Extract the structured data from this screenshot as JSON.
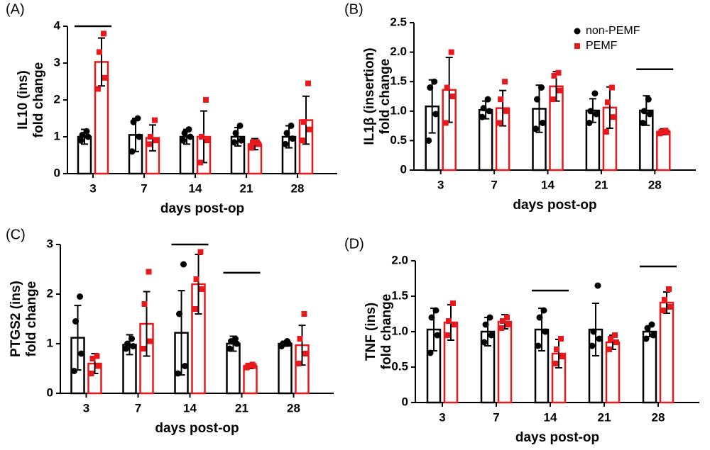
{
  "chart_data": [
    {
      "type": "bar",
      "panel_label": "(A)",
      "ylabel": [
        "IL10 (ins)",
        "fold change"
      ],
      "xlabel": "days post-op",
      "categories": [
        "3",
        "7",
        "14",
        "21",
        "28"
      ],
      "ylim": [
        0,
        4
      ],
      "yticks": [
        0,
        1,
        2,
        3,
        4
      ],
      "significance": [
        {
          "category": "3",
          "y": 4
        }
      ],
      "series": [
        {
          "name": "non-PEMF",
          "color": "#000000",
          "values": [
            1.0,
            1.05,
            1.0,
            1.0,
            1.0
          ],
          "errors": [
            0.2,
            0.45,
            0.2,
            0.25,
            0.3
          ],
          "points": [
            [
              0.9,
              1.0,
              1.05,
              1.15
            ],
            [
              0.6,
              1.0,
              1.4,
              1.5
            ],
            [
              0.9,
              1.0,
              1.1,
              1.2
            ],
            [
              0.85,
              0.9,
              1.1,
              1.3
            ],
            [
              0.8,
              0.95,
              1.1,
              1.3
            ]
          ]
        },
        {
          "name": "PEMF",
          "color": "#e8191c",
          "values": [
            3.03,
            0.97,
            1.0,
            0.8,
            1.45
          ],
          "errors": [
            0.65,
            0.35,
            0.7,
            0.15,
            0.65
          ],
          "points": [
            [
              2.3,
              2.6,
              3.3,
              3.8
            ],
            [
              0.8,
              0.9,
              1.0,
              1.45
            ],
            [
              0.3,
              0.9,
              1.0,
              2.0
            ],
            [
              0.7,
              0.8,
              0.85,
              0.85
            ],
            [
              0.9,
              1.2,
              1.4,
              2.45
            ]
          ]
        }
      ]
    },
    {
      "type": "bar",
      "panel_label": "(B)",
      "ylabel": [
        "IL1β (insertion)",
        "fold change"
      ],
      "xlabel": "days post-op",
      "legend": true,
      "categories": [
        "3",
        "7",
        "14",
        "21",
        "28"
      ],
      "ylim": [
        0,
        2.5
      ],
      "yticks": [
        0,
        0.5,
        {
          "value": 1,
          "label": "1.0"
        },
        1.5,
        {
          "value": 2,
          "label": "2.0"
        },
        2.5
      ],
      "significance": [
        {
          "category": "28",
          "y": 1.71
        }
      ],
      "series": [
        {
          "name": "non-PEMF",
          "color": "#000000",
          "values": [
            1.08,
            1.02,
            1.04,
            1.01,
            1.01
          ],
          "errors": [
            0.45,
            0.15,
            0.4,
            0.2,
            0.25
          ],
          "points": [
            [
              0.5,
              0.95,
              1.4,
              1.5
            ],
            [
              0.9,
              1.0,
              1.05,
              1.2
            ],
            [
              0.7,
              0.8,
              1.2,
              1.4
            ],
            [
              0.8,
              0.95,
              1.0,
              1.3
            ],
            [
              0.8,
              0.95,
              1.0,
              1.2
            ]
          ]
        },
        {
          "name": "PEMF",
          "color": "#e8191c",
          "values": [
            1.36,
            1.05,
            1.42,
            1.06,
            0.65
          ],
          "errors": [
            0.55,
            0.3,
            0.25,
            0.35,
            0.05
          ],
          "points": [
            [
              0.8,
              1.25,
              1.4,
              2.0
            ],
            [
              0.8,
              1.0,
              1.2,
              1.5
            ],
            [
              1.2,
              1.35,
              1.6,
              1.65
            ],
            [
              0.65,
              0.9,
              1.15,
              1.4
            ],
            [
              0.62,
              0.64,
              0.65,
              0.67
            ]
          ]
        }
      ]
    },
    {
      "type": "bar",
      "panel_label": "(C)",
      "ylabel": [
        "PTGS2  (ins)",
        "fold change"
      ],
      "xlabel": "days post-op",
      "categories": [
        "3",
        "7",
        "14",
        "21",
        "28"
      ],
      "ylim": [
        0,
        3
      ],
      "yticks": [
        0,
        1,
        2,
        3
      ],
      "significance": [
        {
          "category": "14",
          "y": 3.0
        },
        {
          "category": "21",
          "y": 2.43
        }
      ],
      "series": [
        {
          "name": "non-PEMF",
          "color": "#000000",
          "values": [
            1.12,
            0.98,
            1.22,
            1.0,
            1.0
          ],
          "errors": [
            0.65,
            0.2,
            0.85,
            0.15,
            0.05
          ],
          "points": [
            [
              0.45,
              0.8,
              1.45,
              1.95
            ],
            [
              0.9,
              0.95,
              1.0,
              1.1
            ],
            [
              0.4,
              0.55,
              1.6,
              2.6
            ],
            [
              0.9,
              1.0,
              1.05,
              1.1
            ],
            [
              0.95,
              1.0,
              1.0,
              1.05
            ]
          ]
        },
        {
          "name": "PEMF",
          "color": "#e8191c",
          "values": [
            0.6,
            1.4,
            2.2,
            0.55,
            0.97
          ],
          "errors": [
            0.2,
            0.65,
            0.6,
            0.05,
            0.4
          ],
          "points": [
            [
              0.4,
              0.55,
              0.7,
              0.75
            ],
            [
              0.9,
              1.05,
              1.8,
              2.45
            ],
            [
              1.7,
              2.1,
              2.3,
              2.85
            ],
            [
              0.52,
              0.55,
              0.56,
              0.58
            ],
            [
              0.6,
              0.8,
              1.1,
              1.6
            ]
          ]
        }
      ]
    },
    {
      "type": "bar",
      "panel_label": "(D)",
      "ylabel": [
        "TNF  (ins)",
        "fold change"
      ],
      "xlabel": "days post-op",
      "categories": [
        "3",
        "7",
        "14",
        "21",
        "28"
      ],
      "ylim": [
        0,
        2
      ],
      "yticks": [
        0,
        0.5,
        {
          "value": 1,
          "label": "1.0"
        },
        1.5,
        {
          "value": 2,
          "label": "2.0"
        }
      ],
      "significance": [
        {
          "category": "14",
          "y": 1.58
        },
        {
          "category": "28",
          "y": 1.92
        }
      ],
      "series": [
        {
          "name": "non-PEMF",
          "color": "#000000",
          "values": [
            1.03,
            1.0,
            1.03,
            1.03,
            1.0
          ],
          "errors": [
            0.3,
            0.2,
            0.3,
            0.37,
            0.07
          ],
          "points": [
            [
              0.7,
              0.95,
              1.2,
              1.3
            ],
            [
              0.85,
              0.95,
              1.1,
              1.2
            ],
            [
              0.8,
              1.0,
              1.2,
              1.3
            ],
            [
              0.8,
              0.9,
              1.0,
              1.65
            ],
            [
              0.9,
              0.95,
              1.05,
              1.1
            ]
          ]
        },
        {
          "name": "PEMF",
          "color": "#e8191c",
          "values": [
            1.13,
            1.14,
            0.69,
            0.85,
            1.41
          ],
          "errors": [
            0.25,
            0.1,
            0.2,
            0.1,
            0.15
          ],
          "points": [
            [
              0.95,
              1.1,
              1.15,
              1.4
            ],
            [
              1.05,
              1.1,
              1.15,
              1.2
            ],
            [
              0.55,
              0.65,
              0.75,
              0.9
            ],
            [
              0.75,
              0.85,
              0.9,
              0.95
            ],
            [
              1.3,
              1.35,
              1.45,
              1.6
            ]
          ]
        }
      ]
    }
  ]
}
